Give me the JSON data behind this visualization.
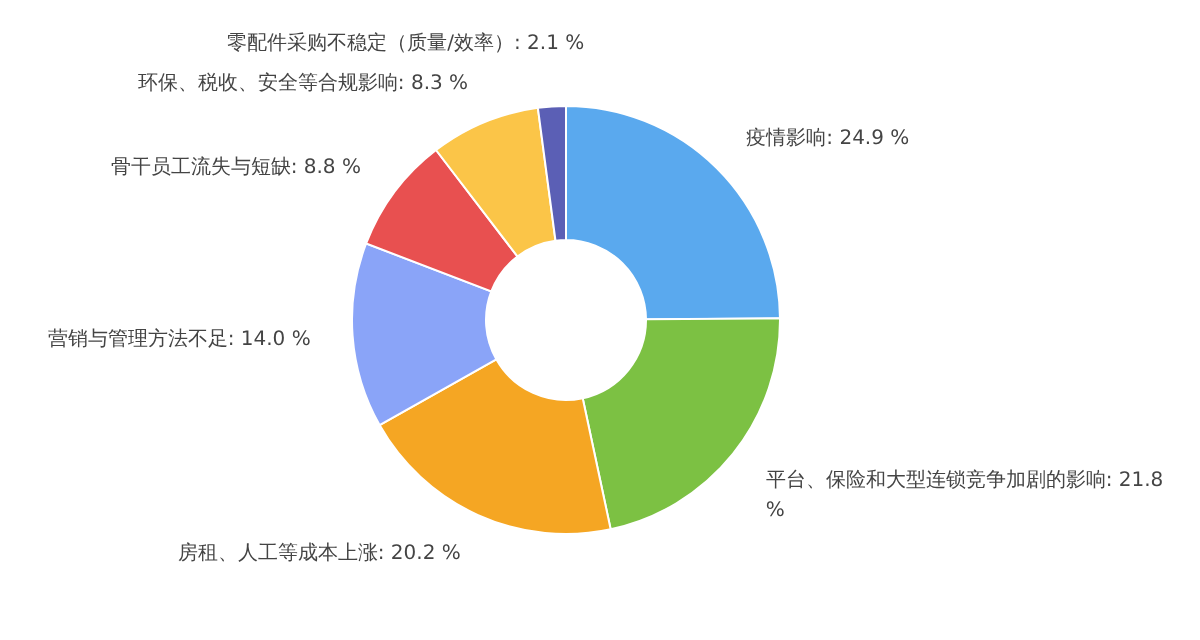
{
  "chart_data": {
    "type": "donut",
    "categories": [
      "疫情影响",
      "平台、保险和大型连锁竞争加剧的影响",
      "房租、人工等成本上涨",
      "营销与管理方法不足",
      "骨干员工流失与短缺",
      "环保、税收、安全等合规影响",
      "零配件采购不稳定（质量/效率）"
    ],
    "values": [
      24.9,
      21.8,
      20.2,
      14.0,
      8.8,
      8.3,
      2.1
    ],
    "value_labels": [
      "24.9 %",
      "21.8 %",
      "20.2 %",
      "14.0 %",
      "8.8 %",
      "8.3 %",
      "2.1 %"
    ],
    "colors": [
      "#5aa9ee",
      "#7cc143",
      "#f5a623",
      "#8aa4f8",
      "#e85050",
      "#fbc548",
      "#5b5fb5"
    ]
  }
}
